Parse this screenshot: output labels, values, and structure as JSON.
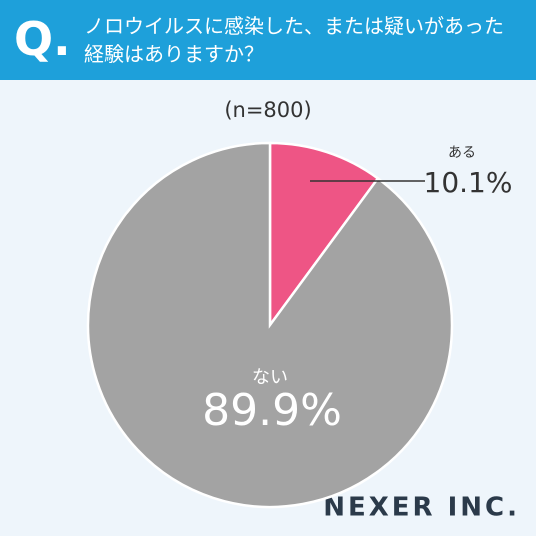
{
  "question_mark": "Q.",
  "chart_data": {
    "type": "pie",
    "title": "ノロウイルスに感染した、または疑いがあった経験はありますか？",
    "subtitle": "(n=800)",
    "categories": [
      "ある",
      "ない"
    ],
    "values": [
      10.1,
      89.9
    ],
    "value_labels": [
      "10.1%",
      "89.9%"
    ],
    "colors": [
      "#ee5585",
      "#a3a3a3"
    ],
    "logo": "NEXER INC."
  }
}
